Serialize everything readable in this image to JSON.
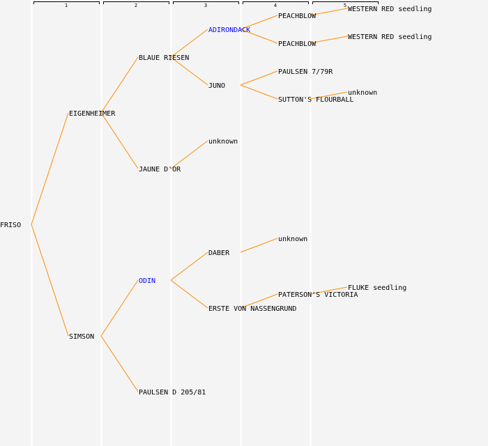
{
  "colors": {
    "background": "#f4f4f4",
    "link_line": "#ff8c00",
    "highlight_text": "#0000ff",
    "text": "#000000",
    "column_separator": "#ffffff"
  },
  "generations": [
    "1",
    "2",
    "3",
    "4",
    "5"
  ],
  "tree": {
    "name": "FRISO",
    "parents": [
      {
        "name": "EIGENHEIMER",
        "parents": [
          {
            "name": "BLAUE RIESEN",
            "parents": [
              {
                "name": "ADIRONDACK",
                "highlight": true,
                "parents": [
                  {
                    "name": "PEACHBLOW",
                    "parents": [
                      {
                        "name": "WESTERN RED seedling"
                      }
                    ]
                  },
                  {
                    "name": "PEACHBLOW",
                    "parents": [
                      {
                        "name": "WESTERN RED seedling"
                      }
                    ]
                  }
                ]
              },
              {
                "name": "JUNO",
                "parents": [
                  {
                    "name": "PAULSEN 7/79R"
                  },
                  {
                    "name": "SUTTON'S FLOURBALL",
                    "parents": [
                      {
                        "name": "unknown"
                      }
                    ]
                  }
                ]
              }
            ]
          },
          {
            "name": "JAUNE D'OR",
            "parents": [
              {
                "name": "unknown"
              }
            ]
          }
        ]
      },
      {
        "name": "SIMSON",
        "parents": [
          {
            "name": "ODIN",
            "highlight": true,
            "parents": [
              {
                "name": "DABER",
                "parents": [
                  {
                    "name": "unknown"
                  }
                ]
              },
              {
                "name": "ERSTE VON NASSENGRUND",
                "parents": [
                  {
                    "name": "PATERSON'S VICTORIA",
                    "parents": [
                      {
                        "name": "FLUKE seedling"
                      }
                    ]
                  }
                ]
              }
            ]
          },
          {
            "name": "PAULSEN D 205/81"
          }
        ]
      }
    ]
  }
}
